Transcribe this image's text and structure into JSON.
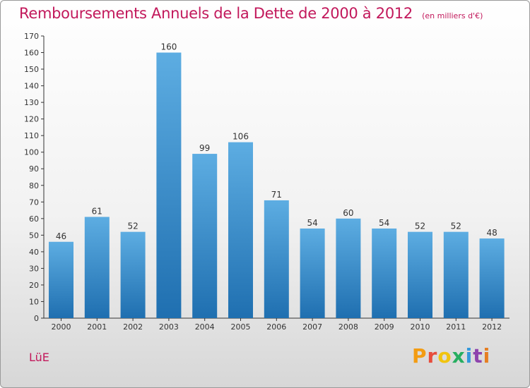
{
  "header": {
    "title": "Remboursements Annuels de la Dette de 2000 à 2012",
    "subtitle": "(en milliers d'€)"
  },
  "footer": {
    "commune": "LüE",
    "brand": "Proxiti",
    "brand_colors": [
      "#f39c12",
      "#e74c3c",
      "#f1c40f",
      "#27ae60",
      "#3498db",
      "#8e44ad",
      "#e67e22"
    ]
  },
  "colors": {
    "title": "#c2185b",
    "bar_top": "#5dade2",
    "bar_bottom": "#1f6fb0"
  },
  "chart_data": {
    "type": "bar",
    "title": "Remboursements Annuels de la Dette de 2000 à 2012",
    "categories": [
      "2000",
      "2001",
      "2002",
      "2003",
      "2004",
      "2005",
      "2006",
      "2007",
      "2008",
      "2009",
      "2010",
      "2011",
      "2012"
    ],
    "values": [
      46,
      61,
      52,
      160,
      99,
      106,
      71,
      54,
      60,
      54,
      52,
      52,
      48
    ],
    "data_labels": [
      "46",
      "61",
      "52",
      "160",
      "99",
      "106",
      "71",
      "54",
      "60",
      "54",
      "52",
      "52",
      "48"
    ],
    "ylim": [
      0,
      170
    ],
    "yticks": [
      0,
      10,
      20,
      30,
      40,
      50,
      60,
      70,
      80,
      90,
      100,
      110,
      120,
      130,
      140,
      150,
      160,
      170
    ],
    "grid": false,
    "xlabel": "",
    "ylabel": ""
  }
}
